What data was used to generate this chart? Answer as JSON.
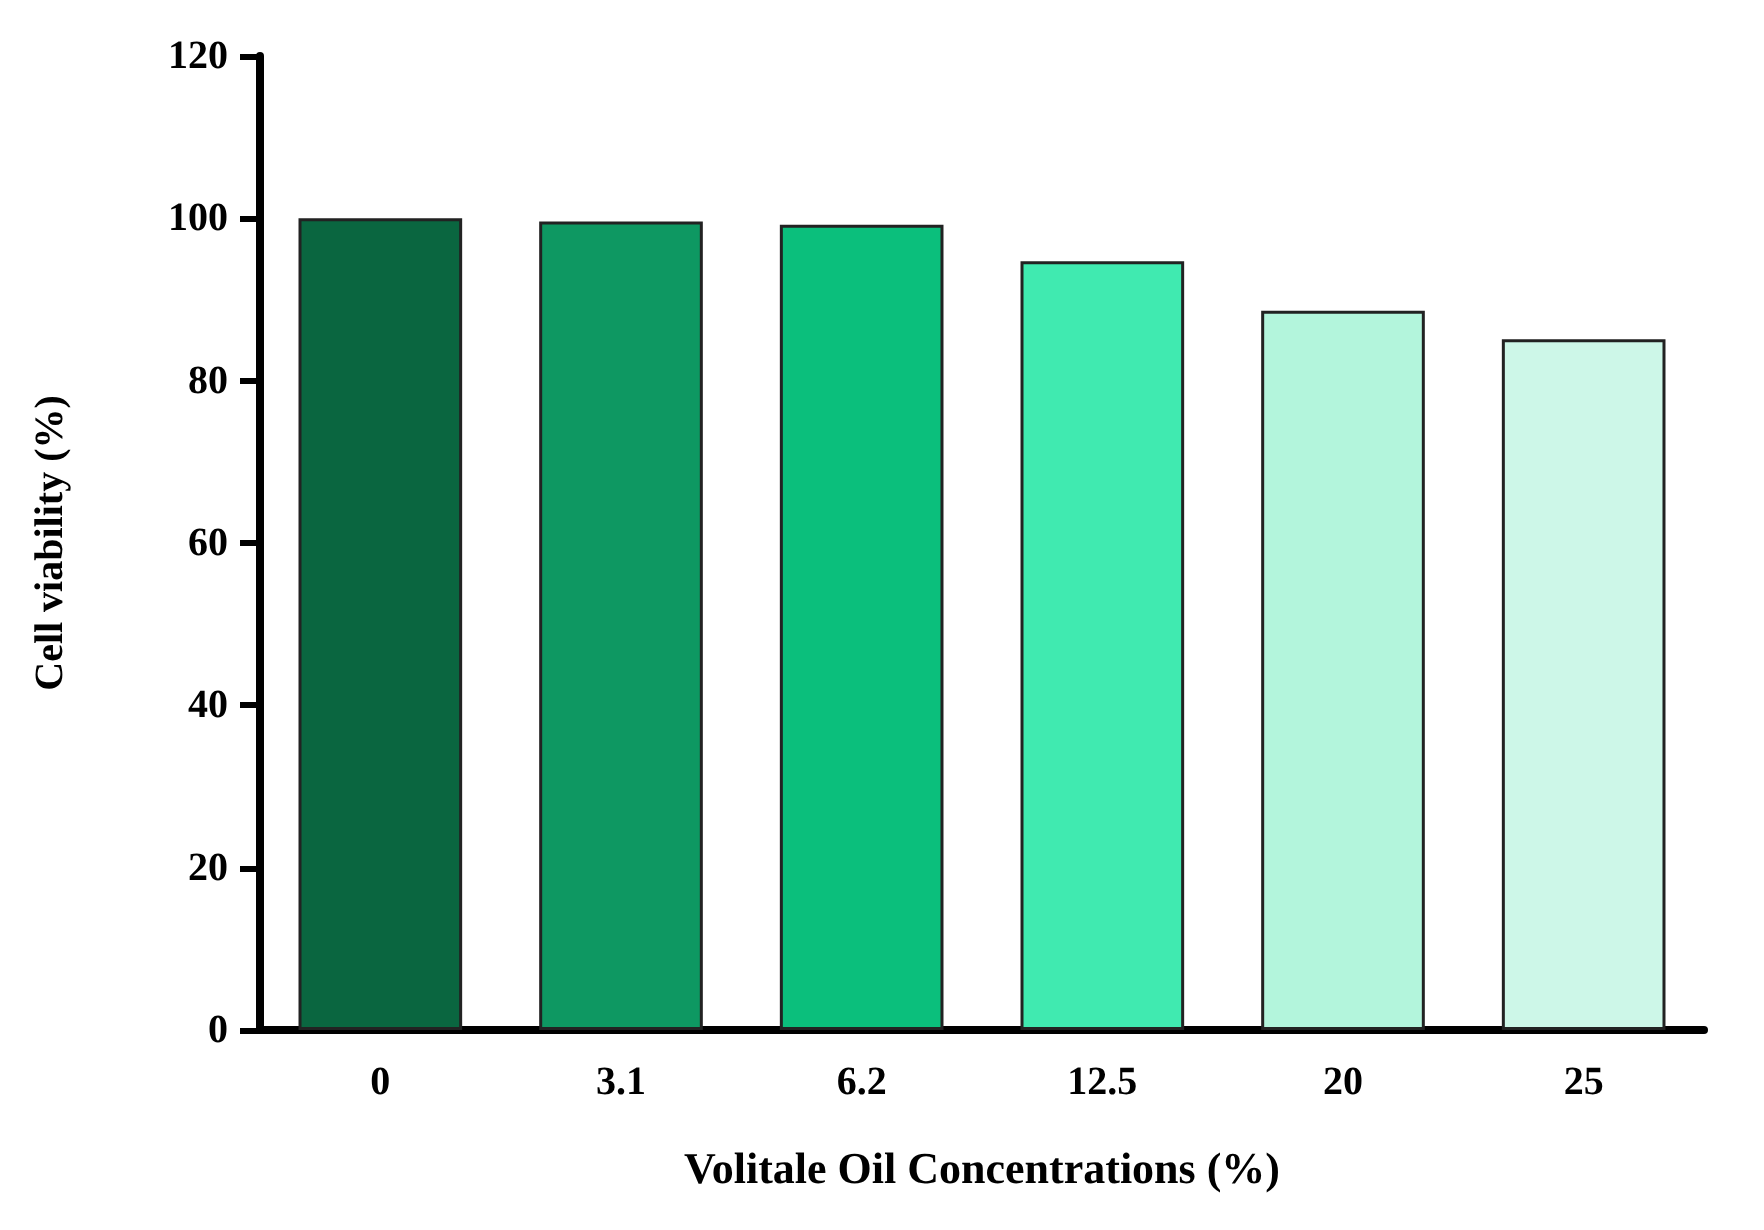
{
  "chart_data": {
    "type": "bar",
    "xlabel": "Volitale Oil Concentrations (%)",
    "ylabel": "Cell viability (%)",
    "categories": [
      "0",
      "3.1",
      "6.2",
      "12.5",
      "20",
      "25"
    ],
    "values": [
      100,
      99.6,
      99.2,
      94.7,
      88.6,
      85.1
    ],
    "colors": [
      "#0a6640",
      "#0e9862",
      "#0bbf7c",
      "#40eab0",
      "#b3f5dc",
      "#cdf7e8"
    ],
    "ylim": [
      0,
      120
    ],
    "yticks": [
      0,
      20,
      40,
      60,
      80,
      100,
      120
    ],
    "grid": false
  }
}
